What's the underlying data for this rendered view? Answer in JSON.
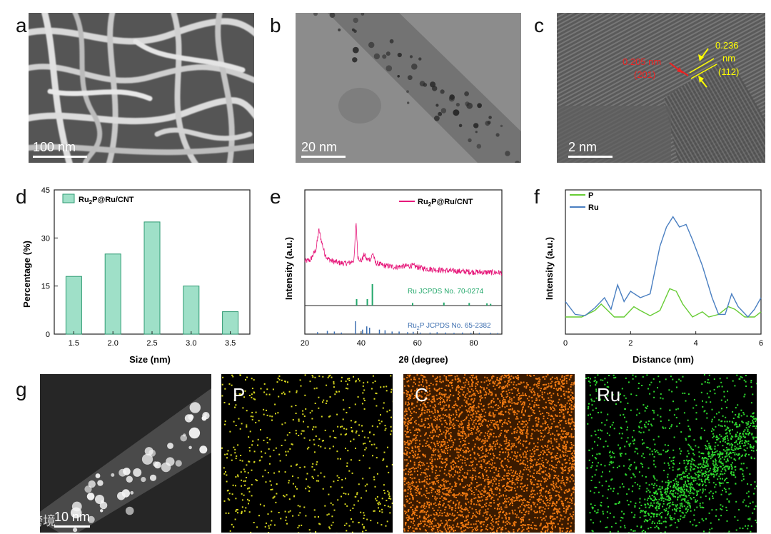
{
  "panels": {
    "a": {
      "letter": "a",
      "scale": "100 nm"
    },
    "b": {
      "letter": "b",
      "scale": "20 nm"
    },
    "c": {
      "letter": "c",
      "scale": "2 nm",
      "ann_red_value": "0.205 nm",
      "ann_red_plane": "(201)",
      "ann_yellow_value": "0.236",
      "ann_yellow_unit": "nm",
      "ann_yellow_plane": "(112)"
    },
    "d": {
      "letter": "d"
    },
    "e": {
      "letter": "e"
    },
    "f": {
      "letter": "f"
    },
    "g": {
      "letter": "g",
      "scale": "10 nm",
      "maps": [
        "P",
        "C",
        "Ru"
      ]
    }
  },
  "watermark": "大数跨境",
  "colors": {
    "bar": "#9fe0c8",
    "bar_edge": "#2f9b73",
    "xrd": "#e6187a",
    "ru_ref": "#23a86b",
    "ru2p_ref": "#3d6fb0",
    "p_line": "#66cc33",
    "ru_line": "#4a7fc1",
    "map_p": "#d8d81e",
    "map_c": "#f07a12",
    "map_ru": "#2ed82e"
  },
  "chart_data": [
    {
      "type": "bar",
      "categories": [
        "1.5",
        "2.0",
        "2.5",
        "3.0",
        "3.5"
      ],
      "values": [
        18,
        25,
        35,
        15,
        7
      ],
      "series": [
        {
          "name": "Ru2P@Ru/CNT",
          "values": [
            18,
            25,
            35,
            15,
            7
          ]
        }
      ],
      "legend": {
        "main": "Ru",
        "sub": "2",
        "rest": "P@Ru/CNT"
      },
      "xlabel": "Size (nm)",
      "ylabel": "Percentage (%)",
      "ylim": [
        0,
        45
      ],
      "yticks": [
        "0",
        "15",
        "30",
        "45"
      ],
      "legend_position": "top-left"
    },
    {
      "type": "line",
      "xlabel": "2θ (degree)",
      "ylabel": "Intensity (a.u.)",
      "xlim": [
        20,
        90
      ],
      "xticks": [
        "20",
        "40",
        "60",
        "80"
      ],
      "legend": {
        "main": "Ru",
        "sub": "2",
        "rest": "P@Ru/CNT"
      },
      "ref_ru": "Ru JCPDS No. 70-0274",
      "ref_ru2p": {
        "main": "Ru",
        "sub": "2",
        "rest": "P JCPDS No. 65-2382"
      },
      "ru_ref_peaks": [
        {
          "x": 38.4,
          "h": 0.3
        },
        {
          "x": 42.2,
          "h": 0.3
        },
        {
          "x": 44.0,
          "h": 1.0
        },
        {
          "x": 58.3,
          "h": 0.12
        },
        {
          "x": 69.4,
          "h": 0.14
        },
        {
          "x": 78.4,
          "h": 0.12
        },
        {
          "x": 84.7,
          "h": 0.1
        },
        {
          "x": 86.0,
          "h": 0.08
        }
      ],
      "ru2p_ref_peaks": [
        {
          "x": 24.5,
          "h": 0.15
        },
        {
          "x": 28.0,
          "h": 0.25
        },
        {
          "x": 30.5,
          "h": 0.2
        },
        {
          "x": 33.0,
          "h": 0.12
        },
        {
          "x": 38.0,
          "h": 1.0
        },
        {
          "x": 40.5,
          "h": 0.35
        },
        {
          "x": 42.0,
          "h": 0.6
        },
        {
          "x": 43.0,
          "h": 0.5
        },
        {
          "x": 46.5,
          "h": 0.35
        },
        {
          "x": 48.5,
          "h": 0.3
        },
        {
          "x": 51.0,
          "h": 0.2
        },
        {
          "x": 53.5,
          "h": 0.2
        },
        {
          "x": 56.5,
          "h": 0.15
        },
        {
          "x": 58.5,
          "h": 0.18
        },
        {
          "x": 61.0,
          "h": 0.12
        },
        {
          "x": 64.5,
          "h": 0.12
        },
        {
          "x": 67.0,
          "h": 0.15
        },
        {
          "x": 70.0,
          "h": 0.12
        },
        {
          "x": 73.0,
          "h": 0.1
        },
        {
          "x": 76.0,
          "h": 0.12
        },
        {
          "x": 79.0,
          "h": 0.1
        },
        {
          "x": 82.0,
          "h": 0.1
        },
        {
          "x": 86.0,
          "h": 0.1
        },
        {
          "x": 88.5,
          "h": 0.08
        }
      ],
      "pattern_points": [
        [
          20,
          0.18
        ],
        [
          22,
          0.2
        ],
        [
          24,
          0.35
        ],
        [
          25,
          0.62
        ],
        [
          26,
          0.45
        ],
        [
          27,
          0.3
        ],
        [
          28,
          0.22
        ],
        [
          30,
          0.18
        ],
        [
          32,
          0.16
        ],
        [
          34,
          0.15
        ],
        [
          36,
          0.16
        ],
        [
          37.5,
          0.2
        ],
        [
          38.2,
          0.75
        ],
        [
          38.8,
          0.25
        ],
        [
          40,
          0.18
        ],
        [
          41.2,
          0.28
        ],
        [
          42,
          0.2
        ],
        [
          43.5,
          0.22
        ],
        [
          44.2,
          0.3
        ],
        [
          45,
          0.16
        ],
        [
          48,
          0.12
        ],
        [
          52,
          0.1
        ],
        [
          58,
          0.12
        ],
        [
          62,
          0.08
        ],
        [
          70,
          0.05
        ],
        [
          80,
          0.03
        ],
        [
          90,
          0.02
        ]
      ]
    },
    {
      "type": "line",
      "xlabel": "Distance (nm)",
      "ylabel": "Intensity (a.u.)",
      "xlim": [
        0,
        6
      ],
      "xticks": [
        "0",
        "2",
        "4",
        "6"
      ],
      "series": [
        {
          "name": "P",
          "points": [
            [
              0,
              0.0
            ],
            [
              0.5,
              0.0
            ],
            [
              0.9,
              0.05
            ],
            [
              1.1,
              0.1
            ],
            [
              1.3,
              0.05
            ],
            [
              1.5,
              0.0
            ],
            [
              1.8,
              0.0
            ],
            [
              2.1,
              0.08
            ],
            [
              2.3,
              0.05
            ],
            [
              2.6,
              0.01
            ],
            [
              2.9,
              0.05
            ],
            [
              3.2,
              0.22
            ],
            [
              3.4,
              0.2
            ],
            [
              3.6,
              0.1
            ],
            [
              3.9,
              0.0
            ],
            [
              4.2,
              0.04
            ],
            [
              4.4,
              0.0
            ],
            [
              4.7,
              0.02
            ],
            [
              5.0,
              0.08
            ],
            [
              5.2,
              0.06
            ],
            [
              5.5,
              0.0
            ],
            [
              5.8,
              0.0
            ],
            [
              6.0,
              0.04
            ]
          ]
        },
        {
          "name": "Ru",
          "points": [
            [
              0,
              0.12
            ],
            [
              0.3,
              0.02
            ],
            [
              0.6,
              0.01
            ],
            [
              0.9,
              0.07
            ],
            [
              1.2,
              0.15
            ],
            [
              1.4,
              0.06
            ],
            [
              1.6,
              0.25
            ],
            [
              1.8,
              0.12
            ],
            [
              2.0,
              0.2
            ],
            [
              2.3,
              0.15
            ],
            [
              2.6,
              0.18
            ],
            [
              2.9,
              0.55
            ],
            [
              3.1,
              0.7
            ],
            [
              3.3,
              0.78
            ],
            [
              3.5,
              0.7
            ],
            [
              3.7,
              0.72
            ],
            [
              3.9,
              0.6
            ],
            [
              4.2,
              0.4
            ],
            [
              4.5,
              0.15
            ],
            [
              4.7,
              0.02
            ],
            [
              4.9,
              0.02
            ],
            [
              5.1,
              0.18
            ],
            [
              5.3,
              0.08
            ],
            [
              5.6,
              0.0
            ],
            [
              5.8,
              0.06
            ],
            [
              6.0,
              0.15
            ]
          ]
        }
      ],
      "legend_position": "top-left"
    }
  ]
}
